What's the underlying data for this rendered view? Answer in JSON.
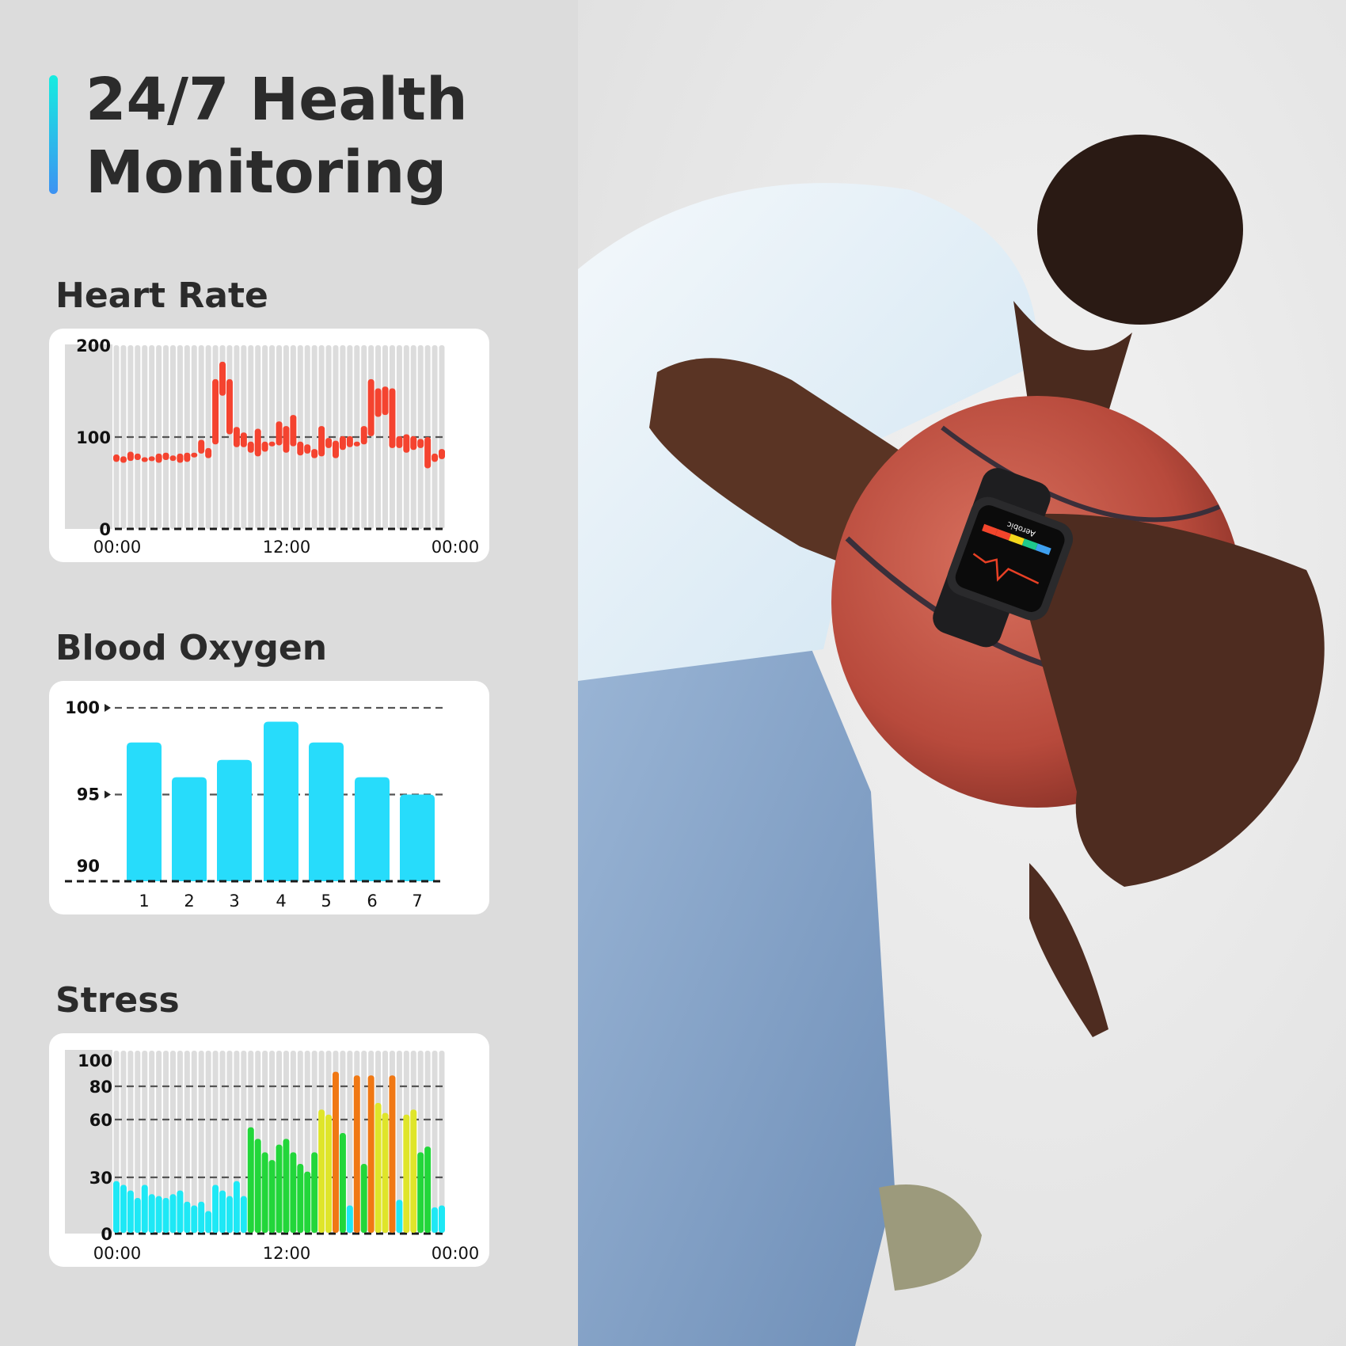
{
  "header": {
    "title_line1": "24/7 Health",
    "title_line2": "Monitoring",
    "accent_gradient": [
      "#16ece0",
      "#3d92f2"
    ]
  },
  "sections": {
    "heart_rate": "Heart Rate",
    "blood_oxygen": "Blood Oxygen",
    "stress": "Stress"
  },
  "watch": {
    "mode_label": "Aerobic",
    "zone_colors": [
      "#f2452c",
      "#f2452c",
      "#f5d81c",
      "#1ec98d",
      "#3ea0f0"
    ]
  },
  "chart_data": [
    {
      "id": "heart_rate",
      "type": "range-bar",
      "color": "#f4432f",
      "ylim": [
        0,
        200
      ],
      "yticks": [
        "0",
        "100",
        "200"
      ],
      "ytick_values": [
        0,
        100,
        200
      ],
      "dashed_gridlines": [
        0,
        100
      ],
      "xtick_labels": [
        "00:00",
        "12:00",
        "00:00"
      ],
      "ranges": [
        [
          73,
          81
        ],
        [
          72,
          79
        ],
        [
          74,
          84
        ],
        [
          75,
          82
        ],
        [
          74,
          78
        ],
        [
          74,
          79
        ],
        [
          72,
          82
        ],
        [
          75,
          83
        ],
        [
          74,
          80
        ],
        [
          72,
          82
        ],
        [
          73,
          83
        ],
        [
          78,
          83
        ],
        [
          82,
          97
        ],
        [
          77,
          88
        ],
        [
          92,
          163
        ],
        [
          145,
          182
        ],
        [
          103,
          163
        ],
        [
          89,
          111
        ],
        [
          89,
          105
        ],
        [
          83,
          95
        ],
        [
          79,
          109
        ],
        [
          84,
          95
        ],
        [
          91,
          95
        ],
        [
          91,
          117
        ],
        [
          83,
          112
        ],
        [
          90,
          124
        ],
        [
          80,
          95
        ],
        [
          82,
          92
        ],
        [
          77,
          87
        ],
        [
          79,
          112
        ],
        [
          88,
          99
        ],
        [
          77,
          96
        ],
        [
          86,
          101
        ],
        [
          89,
          101
        ],
        [
          91,
          95
        ],
        [
          92,
          112
        ],
        [
          101,
          163
        ],
        [
          122,
          153
        ],
        [
          124,
          155
        ],
        [
          88,
          153
        ],
        [
          88,
          101
        ],
        [
          83,
          103
        ],
        [
          86,
          101
        ],
        [
          88,
          98
        ],
        [
          66,
          100
        ],
        [
          73,
          82
        ],
        [
          76,
          87
        ]
      ]
    },
    {
      "id": "blood_oxygen",
      "type": "bar",
      "color": "#27dcfb",
      "ylim": [
        90,
        100
      ],
      "yticks": [
        "90",
        "95",
        "100"
      ],
      "ytick_values": [
        90,
        95,
        100
      ],
      "dashed_gridlines": [
        90,
        95,
        100
      ],
      "categories": [
        "1",
        "2",
        "3",
        "4",
        "5",
        "6",
        "7"
      ],
      "values": [
        98,
        96,
        97,
        99.2,
        98,
        96,
        95
      ]
    },
    {
      "id": "stress",
      "type": "bar",
      "ylim": [
        0,
        100
      ],
      "yticks": [
        "0",
        "30",
        "60",
        "80",
        "100"
      ],
      "ytick_values": [
        0,
        30,
        60,
        80,
        100
      ],
      "dashed_gridlines": [
        0,
        30,
        60,
        80
      ],
      "xtick_labels": [
        "00:00",
        "12:00",
        "00:00"
      ],
      "level_colors": {
        "relaxed": "#1ee8f5",
        "normal": "#22d63a",
        "medium": "#dfe52a",
        "high": "#f07814"
      },
      "values": [
        28,
        26,
        23,
        19,
        26,
        21,
        20,
        19,
        21,
        23,
        17,
        15,
        17,
        12,
        26,
        23,
        20,
        28,
        20,
        56,
        50,
        43,
        39,
        47,
        50,
        43,
        37,
        33,
        43,
        66,
        63,
        88,
        53,
        15,
        86,
        37,
        86,
        70,
        64,
        86,
        18,
        63,
        66,
        43,
        46,
        14,
        15
      ],
      "levels": [
        "relaxed",
        "relaxed",
        "relaxed",
        "relaxed",
        "relaxed",
        "relaxed",
        "relaxed",
        "relaxed",
        "relaxed",
        "relaxed",
        "relaxed",
        "relaxed",
        "relaxed",
        "relaxed",
        "relaxed",
        "relaxed",
        "relaxed",
        "relaxed",
        "relaxed",
        "normal",
        "normal",
        "normal",
        "normal",
        "normal",
        "normal",
        "normal",
        "normal",
        "normal",
        "normal",
        "medium",
        "medium",
        "high",
        "normal",
        "relaxed",
        "high",
        "normal",
        "high",
        "medium",
        "medium",
        "high",
        "relaxed",
        "medium",
        "medium",
        "normal",
        "normal",
        "relaxed",
        "relaxed"
      ]
    }
  ]
}
